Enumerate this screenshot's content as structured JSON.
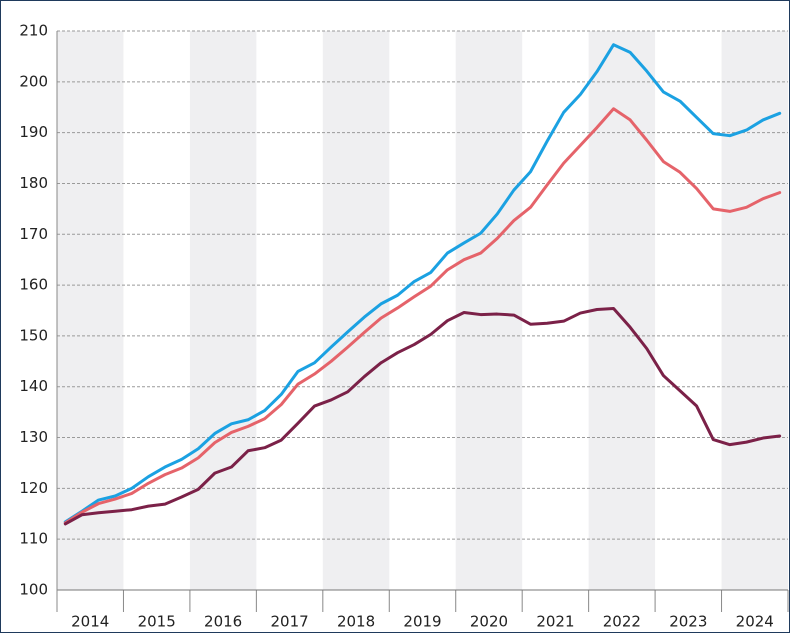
{
  "chart_data": {
    "type": "line",
    "x": [
      2014.125,
      2014.375,
      2014.625,
      2014.875,
      2015.125,
      2015.375,
      2015.625,
      2015.875,
      2016.125,
      2016.375,
      2016.625,
      2016.875,
      2017.125,
      2017.375,
      2017.625,
      2017.875,
      2018.125,
      2018.375,
      2018.625,
      2018.875,
      2019.125,
      2019.375,
      2019.625,
      2019.875,
      2020.125,
      2020.375,
      2020.625,
      2020.875,
      2021.125,
      2021.375,
      2021.625,
      2021.875,
      2022.125,
      2022.375,
      2022.625,
      2022.875,
      2023.125,
      2023.375,
      2023.625,
      2023.875,
      2024.125,
      2024.375,
      2024.625,
      2024.875
    ],
    "series": [
      {
        "color": "#1ba1e2",
        "values": [
          113.4,
          115.5,
          117.7,
          118.5,
          120,
          122.3,
          124.2,
          125.7,
          127.8,
          130.8,
          132.7,
          133.5,
          135.3,
          138.5,
          143,
          144.7,
          147.8,
          150.8,
          153.7,
          156.3,
          158,
          160.7,
          162.5,
          166.3,
          168.3,
          170.2,
          174,
          178.7,
          182.3,
          188.3,
          194,
          197.5,
          202,
          207.3,
          205.8,
          202.1,
          198,
          196.2,
          193,
          189.8,
          189.4,
          190.5,
          192.5,
          193.8
        ]
      },
      {
        "color": "#e5636a",
        "values": [
          113.2,
          115.3,
          117,
          117.9,
          119,
          121,
          122.7,
          124,
          126,
          129,
          131,
          132.2,
          133.7,
          136.5,
          140.5,
          142.5,
          145,
          147.8,
          150.7,
          153.5,
          155.5,
          157.7,
          159.8,
          163,
          165,
          166.3,
          169.2,
          172.7,
          175.3,
          179.7,
          184,
          187.5,
          191,
          194.7,
          192.5,
          188.5,
          184.3,
          182.2,
          179,
          175,
          174.5,
          175.3,
          177,
          178.2
        ]
      },
      {
        "color": "#7b2148",
        "values": [
          113,
          114.8,
          115.2,
          115.5,
          115.8,
          116.5,
          116.9,
          118.3,
          119.8,
          123,
          124.2,
          127.4,
          128,
          129.5,
          132.8,
          136.2,
          137.4,
          139,
          142,
          144.7,
          146.7,
          148.3,
          150.3,
          153,
          154.6,
          154.2,
          154.3,
          154.1,
          152.3,
          152.5,
          152.9,
          154.5,
          155.2,
          155.4,
          151.7,
          147.5,
          142.2,
          139.2,
          136.2,
          129.6,
          128.6,
          129.1,
          129.9,
          130.3
        ]
      }
    ],
    "xlim": [
      2014,
      2025
    ],
    "xticks": [
      {
        "value": 2014.5,
        "label": "2014"
      },
      {
        "value": 2015.5,
        "label": "2015"
      },
      {
        "value": 2016.5,
        "label": "2016"
      },
      {
        "value": 2017.5,
        "label": "2017"
      },
      {
        "value": 2018.5,
        "label": "2018"
      },
      {
        "value": 2019.5,
        "label": "2019"
      },
      {
        "value": 2020.5,
        "label": "2020"
      },
      {
        "value": 2021.5,
        "label": "2021"
      },
      {
        "value": 2022.5,
        "label": "2022"
      },
      {
        "value": 2023.5,
        "label": "2023"
      },
      {
        "value": 2024.5,
        "label": "2024"
      }
    ],
    "ylim": [
      100,
      210
    ],
    "yticks": [
      100,
      110,
      120,
      130,
      140,
      150,
      160,
      170,
      180,
      190,
      200,
      210
    ],
    "grid": true,
    "band_color": "#efeff1"
  }
}
